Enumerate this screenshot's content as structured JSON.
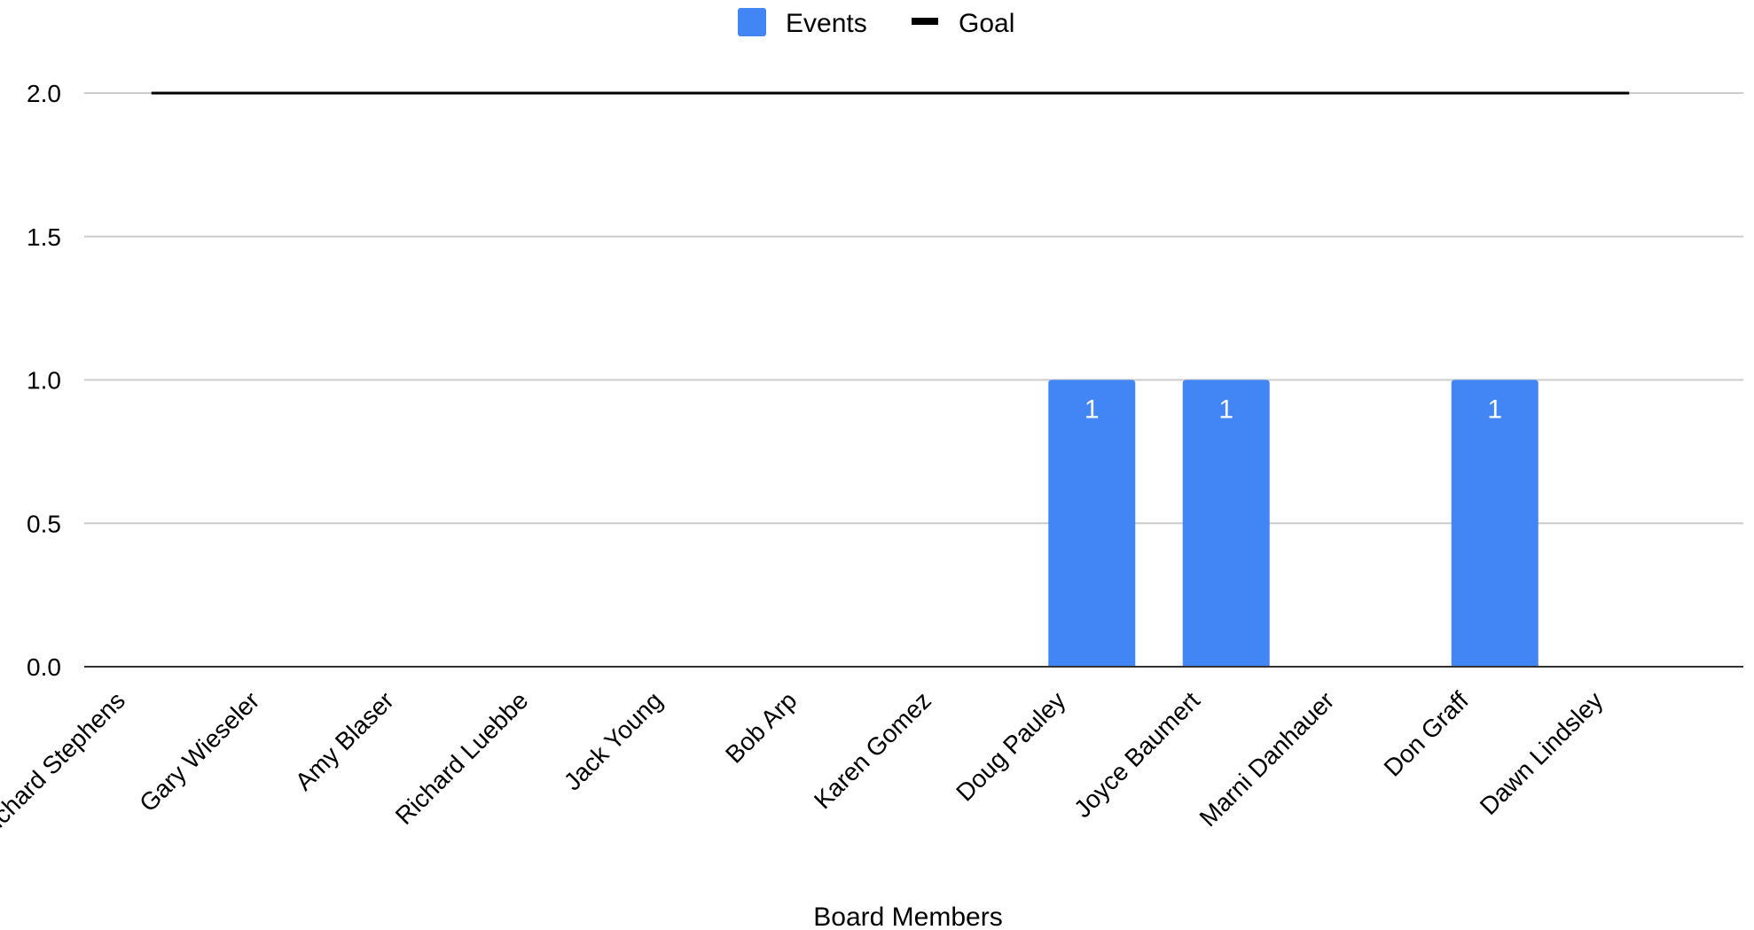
{
  "chart_data": {
    "type": "bar",
    "categories": [
      "Richard Stephens",
      "Gary Wieseler",
      "Amy Blaser",
      "Richard Luebbe",
      "Jack Young",
      "Bob Arp",
      "Karen Gomez",
      "Doug Pauley",
      "Joyce Baumert",
      "Marni Danhauer",
      "Don Graff",
      "Dawn Lindsley"
    ],
    "series": [
      {
        "name": "Events",
        "type": "bar",
        "color": "#4285f4",
        "values": [
          0,
          0,
          0,
          0,
          0,
          0,
          0,
          1,
          1,
          0,
          1,
          0
        ],
        "data_labels": [
          "",
          "",
          "",
          "",
          "",
          "",
          "",
          "1",
          "1",
          "",
          "1",
          ""
        ]
      },
      {
        "name": "Goal",
        "type": "line",
        "color": "#000000",
        "values": [
          2,
          2,
          2,
          2,
          2,
          2,
          2,
          2,
          2,
          2,
          2,
          2
        ]
      }
    ],
    "xlabel": "Board Members",
    "ylabel": "",
    "ylim": [
      0,
      2
    ],
    "yticks": [
      "0.0",
      "0.5",
      "1.0",
      "1.5",
      "2.0"
    ],
    "grid": true,
    "gridline_color": "#cccccc",
    "axis_color": "#333333",
    "legend_position": "top-center"
  }
}
